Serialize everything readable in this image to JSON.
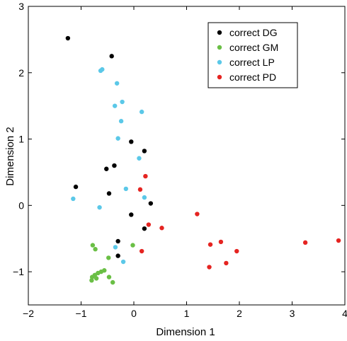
{
  "chart_data": {
    "type": "scatter",
    "xlabel": "Dimension 1",
    "ylabel": "Dimension 2",
    "xlim": [
      -2,
      4
    ],
    "ylim": [
      -1.5,
      3
    ],
    "xticks": [
      -2,
      -1,
      0,
      1,
      2,
      3,
      4
    ],
    "yticks": [
      -1,
      0,
      1,
      2,
      3
    ],
    "xtick_labels": [
      "−2",
      "−1",
      "0",
      "1",
      "2",
      "3",
      "4"
    ],
    "ytick_labels": [
      "−1",
      "0",
      "1",
      "2",
      "3"
    ],
    "grid": false,
    "legend_position": "top-right",
    "series": [
      {
        "name": "correct DG",
        "color": "#000000",
        "points": [
          [
            -1.25,
            2.52
          ],
          [
            -0.42,
            2.25
          ],
          [
            -0.05,
            0.96
          ],
          [
            0.2,
            0.82
          ],
          [
            -0.37,
            0.6
          ],
          [
            -0.52,
            0.55
          ],
          [
            -1.1,
            0.28
          ],
          [
            -0.47,
            0.18
          ],
          [
            0.32,
            0.03
          ],
          [
            -0.05,
            -0.14
          ],
          [
            0.2,
            -0.35
          ],
          [
            -0.3,
            -0.54
          ],
          [
            -0.3,
            -0.76
          ]
        ]
      },
      {
        "name": "correct GM",
        "color": "#6abf45",
        "points": [
          [
            -0.78,
            -0.6
          ],
          [
            -0.73,
            -0.66
          ],
          [
            -0.02,
            -0.6
          ],
          [
            -0.48,
            -0.79
          ],
          [
            -0.56,
            -0.98
          ],
          [
            -0.62,
            -1.0
          ],
          [
            -0.68,
            -1.02
          ],
          [
            -0.74,
            -1.05
          ],
          [
            -0.79,
            -1.08
          ],
          [
            -0.71,
            -1.1
          ],
          [
            -0.8,
            -1.13
          ],
          [
            -0.47,
            -1.08
          ],
          [
            -0.4,
            -1.16
          ]
        ]
      },
      {
        "name": "correct LP",
        "color": "#5bc8e8",
        "points": [
          [
            -0.63,
            2.03
          ],
          [
            -0.6,
            2.05
          ],
          [
            -0.32,
            1.84
          ],
          [
            -0.22,
            1.56
          ],
          [
            -0.36,
            1.5
          ],
          [
            0.15,
            1.41
          ],
          [
            -0.24,
            1.27
          ],
          [
            -0.3,
            1.01
          ],
          [
            0.1,
            0.71
          ],
          [
            -0.15,
            0.25
          ],
          [
            0.2,
            0.12
          ],
          [
            -1.15,
            0.1
          ],
          [
            -0.65,
            -0.03
          ],
          [
            -0.35,
            -0.63
          ],
          [
            -0.2,
            -0.85
          ]
        ]
      },
      {
        "name": "correct PD",
        "color": "#e52421",
        "points": [
          [
            0.22,
            0.44
          ],
          [
            0.12,
            0.24
          ],
          [
            0.28,
            -0.29
          ],
          [
            0.53,
            -0.34
          ],
          [
            0.15,
            -0.69
          ],
          [
            1.2,
            -0.13
          ],
          [
            1.65,
            -0.55
          ],
          [
            1.45,
            -0.59
          ],
          [
            1.95,
            -0.69
          ],
          [
            1.75,
            -0.87
          ],
          [
            1.43,
            -0.93
          ],
          [
            3.25,
            -0.56
          ],
          [
            3.88,
            -0.53
          ]
        ]
      }
    ]
  }
}
